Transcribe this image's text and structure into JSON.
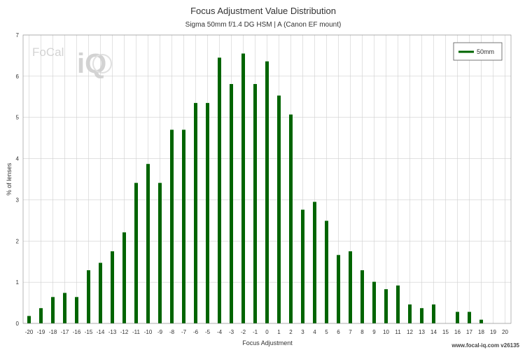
{
  "chart_data": {
    "type": "bar",
    "title": "Focus Adjustment Value Distribution",
    "subtitle": "Sigma 50mm f/1.4 DG HSM | A (Canon EF mount)",
    "xlabel": "Focus Adjustment",
    "ylabel": "% of lenses",
    "ylim": [
      0,
      7
    ],
    "yticks": [
      0,
      1,
      2,
      3,
      4,
      5,
      6,
      7
    ],
    "grid": true,
    "legend_position": "top-right",
    "categories": [
      -20,
      -19,
      -18,
      -17,
      -16,
      -15,
      -14,
      -13,
      -12,
      -11,
      -10,
      -9,
      -8,
      -7,
      -6,
      -5,
      -4,
      -3,
      -2,
      -1,
      0,
      1,
      2,
      3,
      4,
      5,
      6,
      7,
      8,
      9,
      10,
      11,
      12,
      13,
      14,
      15,
      16,
      17,
      18,
      19,
      20
    ],
    "series": [
      {
        "name": "50mm",
        "color": "#006400",
        "values": [
          0.18,
          0.37,
          0.64,
          0.74,
          0.64,
          1.29,
          1.47,
          1.75,
          2.21,
          3.41,
          3.87,
          3.41,
          4.7,
          4.7,
          5.35,
          5.35,
          6.45,
          5.81,
          6.55,
          5.81,
          6.36,
          5.53,
          5.07,
          2.76,
          2.95,
          2.49,
          1.66,
          1.75,
          1.29,
          1.01,
          0.83,
          0.92,
          0.46,
          0.37,
          0.46,
          0,
          0.28,
          0.28,
          0.09,
          0,
          0
        ]
      }
    ]
  },
  "footer": "www.focal-iq.com  v26135",
  "logo": {
    "text_left": "FoCal",
    "text_right": "iQ"
  }
}
